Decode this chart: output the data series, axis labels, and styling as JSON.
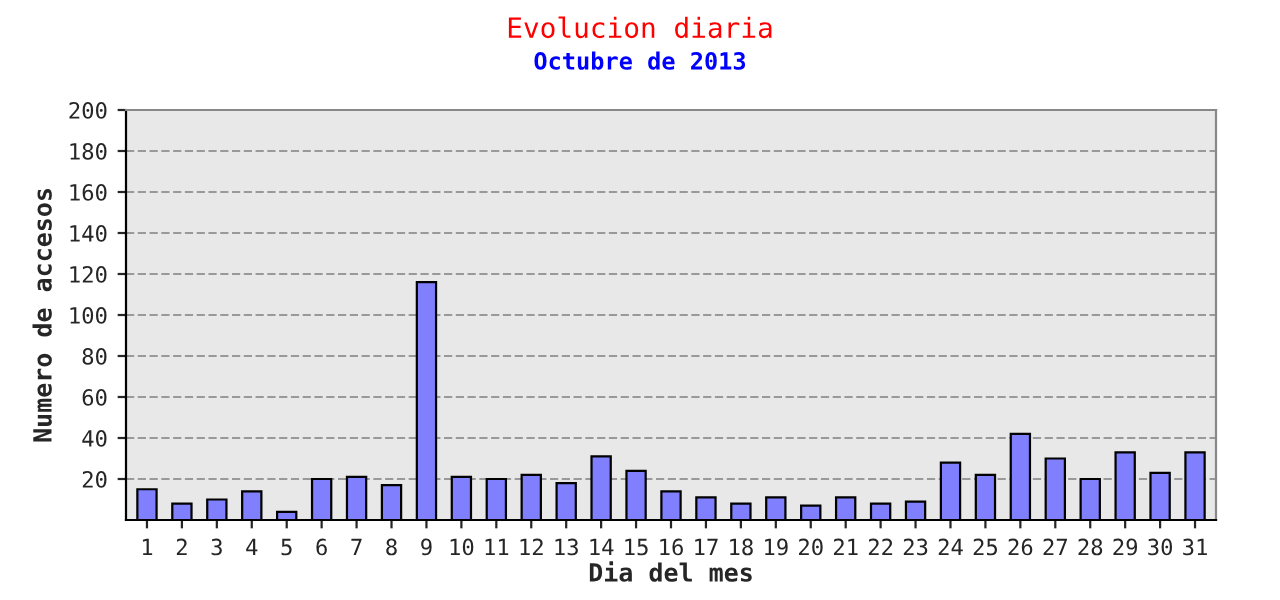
{
  "chart_data": {
    "type": "bar",
    "title": "Evolucion diaria",
    "subtitle": "Octubre de 2013",
    "xlabel": "Dia del mes",
    "ylabel": "Numero de accesos",
    "categories": [
      "1",
      "2",
      "3",
      "4",
      "5",
      "6",
      "7",
      "8",
      "9",
      "10",
      "11",
      "12",
      "13",
      "14",
      "15",
      "16",
      "17",
      "18",
      "19",
      "20",
      "21",
      "22",
      "23",
      "24",
      "25",
      "26",
      "27",
      "28",
      "29",
      "30",
      "31"
    ],
    "values": [
      15,
      8,
      10,
      14,
      4,
      20,
      21,
      17,
      116,
      21,
      20,
      22,
      18,
      31,
      24,
      14,
      11,
      8,
      11,
      7,
      11,
      8,
      9,
      28,
      22,
      42,
      30,
      20,
      33,
      23,
      33
    ],
    "color": "#8080ff",
    "ylim": [
      0,
      200
    ],
    "yticks": [
      20,
      40,
      60,
      80,
      100,
      120,
      140,
      160,
      180,
      200
    ],
    "grid": "y"
  }
}
